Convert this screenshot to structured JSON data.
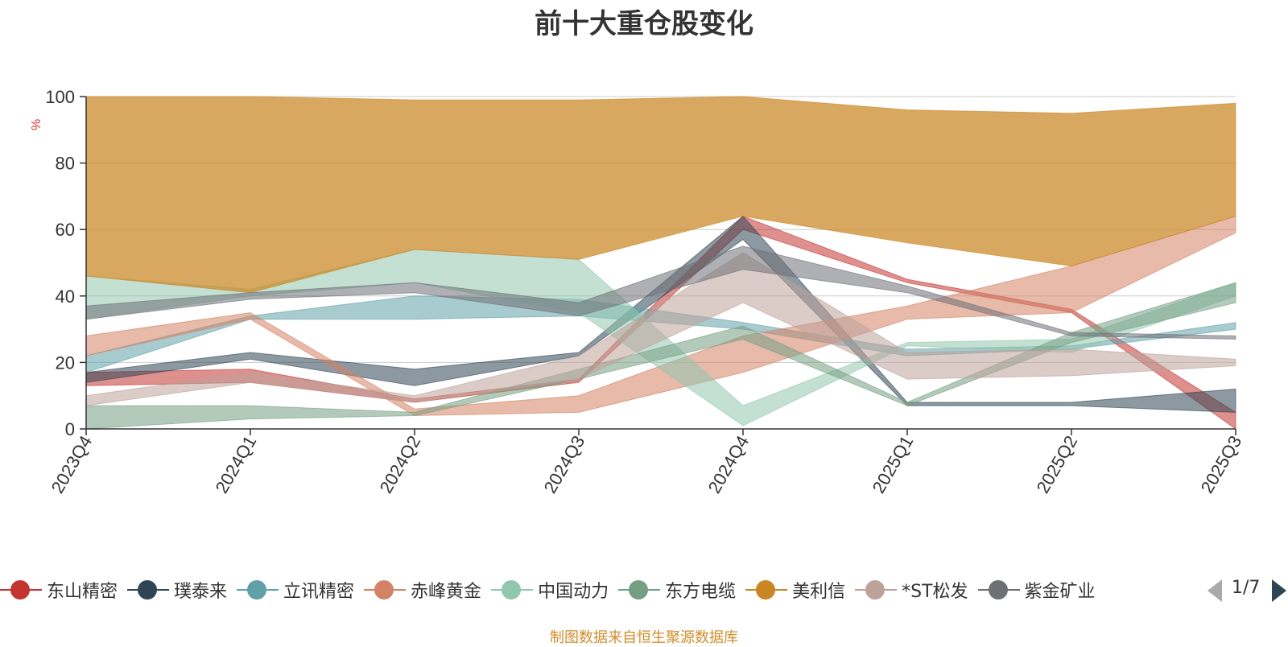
{
  "colors": {
    "title": "#333333",
    "axis": "#333333",
    "grid": "#cccccc",
    "unit": "#e03030",
    "source": "#d08c2a"
  },
  "legend": {
    "page_label": "1/7"
  },
  "source_note": "制图数据来自恒生聚源数据库",
  "chart_data": {
    "type": "area",
    "title": "前十大重仓股变化",
    "ylabel": "%",
    "xlabel": "",
    "ylim": [
      0,
      100
    ],
    "yticks": [
      0,
      20,
      40,
      60,
      80,
      100
    ],
    "grid": true,
    "categories": [
      "2023Q4",
      "2024Q1",
      "2024Q2",
      "2024Q3",
      "2024Q4",
      "2025Q1",
      "2025Q2",
      "2025Q3"
    ],
    "series": [
      {
        "name": "东山精密",
        "color": "#c23531",
        "bands": [
          [
            13,
            17
          ],
          [
            14,
            18
          ],
          [
            8,
            9
          ],
          [
            14,
            15
          ],
          [
            60,
            64
          ],
          [
            44,
            45
          ],
          [
            35,
            36
          ],
          [
            0,
            5
          ]
        ]
      },
      {
        "name": "璞泰来",
        "color": "#2f4554",
        "bands": [
          [
            14,
            17
          ],
          [
            21,
            23
          ],
          [
            13,
            18
          ],
          [
            22,
            23
          ],
          [
            57,
            64
          ],
          [
            7,
            8
          ],
          [
            7,
            8
          ],
          [
            5,
            12
          ]
        ]
      },
      {
        "name": "立讯精密",
        "color": "#61a0a8",
        "bands": [
          [
            17,
            22
          ],
          [
            33,
            34
          ],
          [
            33,
            40
          ],
          [
            34,
            39
          ],
          [
            30,
            32
          ],
          [
            22,
            24
          ],
          [
            24,
            25
          ],
          [
            30,
            32
          ]
        ]
      },
      {
        "name": "赤峰黄金",
        "color": "#d48265",
        "bands": [
          [
            22,
            28
          ],
          [
            33,
            35
          ],
          [
            4,
            6
          ],
          [
            5,
            10
          ],
          [
            17,
            28
          ],
          [
            33,
            37
          ],
          [
            35,
            49
          ],
          [
            59,
            64
          ]
        ]
      },
      {
        "name": "中国动力",
        "color": "#91c7ae",
        "bands": [
          [
            33,
            46
          ],
          [
            40,
            42
          ],
          [
            44,
            54
          ],
          [
            35,
            51
          ],
          [
            1,
            7
          ],
          [
            25,
            26
          ],
          [
            23,
            27
          ],
          [
            40,
            44
          ]
        ]
      },
      {
        "name": "东方电缆",
        "color": "#749f83",
        "bands": [
          [
            0,
            7
          ],
          [
            3,
            7
          ],
          [
            4,
            5
          ],
          [
            15,
            18
          ],
          [
            27,
            31
          ],
          [
            7,
            8
          ],
          [
            26,
            29
          ],
          [
            38,
            44
          ]
        ]
      },
      {
        "name": "美利信",
        "color": "#ca8622",
        "bands": [
          [
            46,
            100
          ],
          [
            41,
            100
          ],
          [
            54,
            99
          ],
          [
            51,
            99
          ],
          [
            64,
            100
          ],
          [
            56,
            96
          ],
          [
            49,
            95
          ],
          [
            64,
            98
          ]
        ]
      },
      {
        "name": "*ST松发",
        "color": "#bda29a",
        "bands": [
          [
            7,
            10
          ],
          [
            14,
            17
          ],
          [
            8,
            10
          ],
          [
            15,
            22
          ],
          [
            38,
            53
          ],
          [
            15,
            23
          ],
          [
            16,
            24
          ],
          [
            19,
            21
          ]
        ]
      },
      {
        "name": "紫金矿业",
        "color": "#6e7074",
        "bands": [
          [
            33,
            37
          ],
          [
            39,
            41
          ],
          [
            41,
            44
          ],
          [
            34,
            38
          ],
          [
            48,
            55
          ],
          [
            41,
            43
          ],
          [
            28,
            29
          ],
          [
            27,
            28
          ]
        ]
      }
    ]
  }
}
